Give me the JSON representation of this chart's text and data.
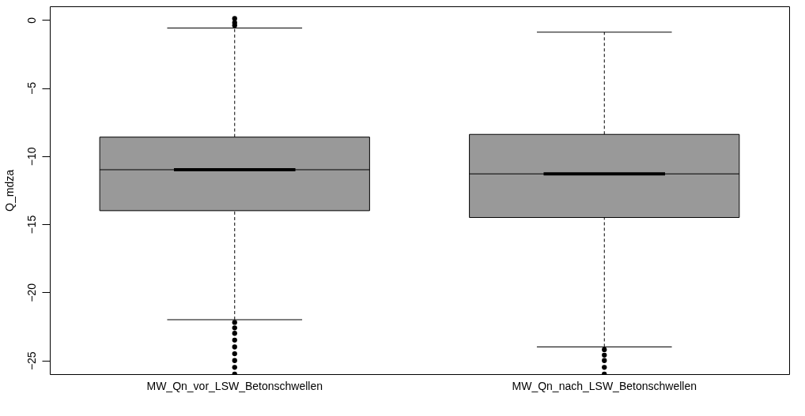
{
  "chart_data": {
    "type": "box",
    "ylabel": "Q_mdza",
    "categories": [
      "MW_Qn_vor_LSW_Betonschwellen",
      "MW_Qn_nach_LSW_Betonschwellen"
    ],
    "color": "#999999",
    "boxes": [
      {
        "low": -22.0,
        "q1": -14.0,
        "median": -11.0,
        "q3": -8.6,
        "high": -0.6,
        "outliers": [
          0.1,
          -0.2,
          -0.4,
          -22.2,
          -22.6,
          -23.0,
          -23.5,
          -24.0,
          -24.5,
          -25.0,
          -25.5,
          -26.0
        ]
      },
      {
        "low": -24.0,
        "q1": -14.5,
        "median": -11.3,
        "q3": -8.4,
        "high": -0.9,
        "outliers": [
          -24.2,
          -24.6,
          -25.0,
          -25.5,
          -26.0
        ]
      }
    ],
    "ylim": [
      -26.0,
      1.0
    ],
    "yticks": [
      -25,
      -20,
      -15,
      -10,
      -5,
      0
    ],
    "grid": false
  }
}
